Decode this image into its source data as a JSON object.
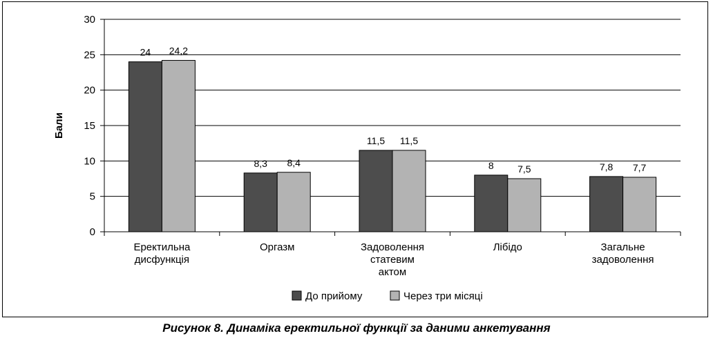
{
  "chart_data": {
    "type": "bar",
    "categories": [
      [
        "Еректильна",
        "дисфункція"
      ],
      [
        "Оргазм"
      ],
      [
        "Задоволення",
        "статевим",
        "актом"
      ],
      [
        "Лібідо"
      ],
      [
        "Загальне",
        "задоволення"
      ]
    ],
    "series": [
      {
        "name": "До прийому",
        "values": [
          24,
          8.3,
          11.5,
          8,
          7.8
        ],
        "labels": [
          "24",
          "8,3",
          "11,5",
          "8",
          "7,8"
        ],
        "color": "#4d4d4d"
      },
      {
        "name": "Через три місяці",
        "values": [
          24.2,
          8.4,
          11.5,
          7.5,
          7.7
        ],
        "labels": [
          "24,2",
          "8,4",
          "11,5",
          "7,5",
          "7,7"
        ],
        "color": "#b3b3b3"
      }
    ],
    "ylabel": "Бали",
    "ylim": [
      0,
      30
    ],
    "yticks": [
      0,
      5,
      10,
      15,
      20,
      25,
      30
    ],
    "grid": true,
    "legend": "bottom"
  },
  "caption": "Рисунок 8. Динаміка еректильної функції за даними анкетування"
}
